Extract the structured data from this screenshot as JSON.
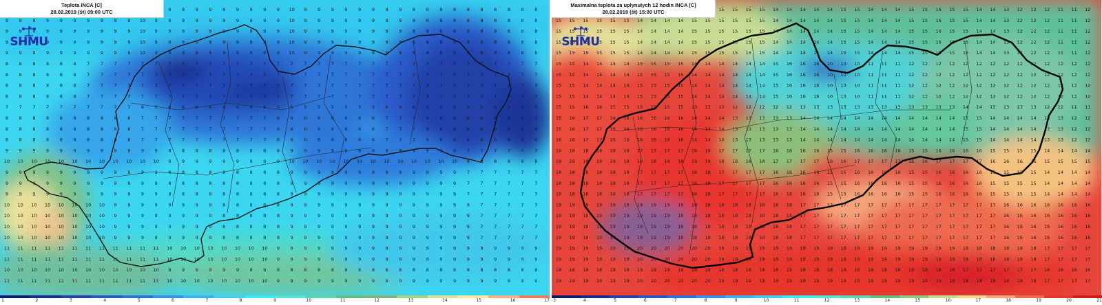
{
  "left_panel": {
    "title": "Teplota INCA [C]",
    "subtitle": "28.02.2019 (št) 09:00 UTC",
    "logo_text": "SHMU",
    "legend": {
      "labels": [
        "1",
        "2",
        "3",
        "4",
        "5",
        "6",
        "7",
        "8",
        "9",
        "10",
        "11",
        "12",
        "13",
        "14",
        "15",
        "16",
        "17"
      ],
      "colors": [
        "#0e1a6e",
        "#1a2a8c",
        "#2340a8",
        "#2b55c4",
        "#3170d6",
        "#3a8ee6",
        "#3fb1ee",
        "#3fcff2",
        "#3fe6f0",
        "#52e6d2",
        "#5cd3ae",
        "#67bb85",
        "#7bb677",
        "#a6cf86",
        "#d4e49a",
        "#f7e7a0",
        "#f6b184",
        "#f07c5c"
      ]
    },
    "grid_values": [
      [
        9,
        9,
        9,
        9,
        9,
        9,
        9,
        9,
        9,
        9,
        10,
        9,
        9,
        9,
        9,
        9,
        9,
        9,
        9,
        9,
        9,
        10,
        9,
        9,
        9,
        9,
        9,
        9,
        9,
        9,
        8,
        8,
        8,
        8,
        8,
        8,
        8,
        8,
        8,
        8
      ],
      [
        8,
        8,
        8,
        8,
        8,
        8,
        7,
        7,
        7,
        7,
        7,
        7,
        7,
        7,
        7,
        7,
        7,
        7,
        7,
        7,
        7,
        7,
        7,
        7,
        7,
        7,
        7,
        7,
        7,
        7,
        7,
        7,
        7,
        7,
        7,
        7,
        7,
        7,
        7,
        7
      ],
      [
        8,
        8,
        8,
        8,
        8,
        8,
        8,
        8,
        8,
        8,
        7,
        7,
        7,
        7,
        7,
        7,
        7,
        7,
        7,
        7,
        6,
        6,
        6,
        6,
        6,
        6,
        6,
        6,
        7,
        7,
        7,
        6,
        6,
        6,
        6,
        6,
        6,
        6,
        6,
        6
      ],
      [
        9,
        9,
        9,
        9,
        9,
        9,
        9,
        9,
        9,
        9,
        9,
        9,
        8,
        8,
        8,
        8,
        8,
        8,
        8,
        8,
        8,
        9,
        9,
        9,
        9,
        9,
        9,
        9,
        9,
        9,
        9,
        9,
        9,
        9,
        7,
        7,
        7,
        7,
        7,
        7
      ],
      [
        10,
        10,
        10,
        10,
        10,
        10,
        10,
        10,
        9,
        9,
        9,
        9,
        9,
        9,
        9,
        9,
        8,
        8,
        8,
        8,
        8,
        9,
        9,
        9,
        9,
        9,
        9,
        9,
        9,
        9,
        9,
        9,
        9,
        9,
        9,
        7,
        7,
        7,
        7,
        7
      ],
      [
        11,
        11,
        11,
        11,
        11,
        11,
        11,
        11,
        11,
        11,
        11,
        11,
        10,
        10,
        10,
        10,
        10,
        10,
        10,
        10,
        9,
        9,
        9,
        9,
        9,
        9,
        9,
        9,
        9,
        9,
        9,
        9,
        9,
        9,
        9,
        9,
        9,
        9,
        9,
        9
      ]
    ]
  },
  "right_panel": {
    "title": "Maximalna teplota za uplynulych 12 hodin INCA [C]",
    "subtitle": "28.02.2019 (št) 15:00 UTC",
    "logo_text": "SHMU",
    "legend": {
      "labels": [
        "3",
        "4",
        "5",
        "6",
        "7",
        "8",
        "9",
        "10",
        "11",
        "12",
        "13",
        "14",
        "15",
        "16",
        "17",
        "18",
        "19",
        "20",
        "21"
      ],
      "colors": [
        "#0e1a6e",
        "#1a2a8c",
        "#2340a8",
        "#2b55c4",
        "#3170d6",
        "#3a8ee6",
        "#3fb1ee",
        "#3fcff2",
        "#3fe6f0",
        "#52e6d2",
        "#5cd3ae",
        "#67bb85",
        "#8ec47f",
        "#c4dc90",
        "#f6d88c",
        "#f6a579",
        "#ef6a4f",
        "#e8352f",
        "#d21b1f"
      ]
    },
    "grid_values": [
      [
        15,
        15,
        15,
        15,
        15,
        15,
        14,
        14,
        14,
        14,
        15,
        15,
        15,
        15,
        15,
        15,
        14,
        14,
        14,
        14,
        14,
        15,
        15,
        14,
        14,
        14,
        15,
        15,
        16,
        15,
        15,
        14,
        14,
        13,
        12,
        12,
        12,
        11,
        11,
        12
      ],
      [
        15,
        15,
        14,
        14,
        14,
        14,
        15,
        15,
        15,
        15,
        14,
        14,
        14,
        14,
        14,
        14,
        15,
        16,
        16,
        16,
        10,
        10,
        10,
        11,
        11,
        11,
        12,
        12,
        12,
        12,
        12,
        12,
        12,
        12,
        12,
        12,
        12,
        12,
        12,
        12
      ],
      [
        16,
        16,
        17,
        17,
        16,
        16,
        16,
        16,
        16,
        16,
        14,
        14,
        14,
        13,
        13,
        13,
        13,
        13,
        14,
        14,
        14,
        14,
        14,
        14,
        14,
        14,
        14,
        14,
        14,
        14,
        15,
        15,
        14,
        14,
        14,
        14,
        13,
        13,
        12,
        12
      ],
      [
        18,
        18,
        18,
        18,
        18,
        18,
        17,
        17,
        17,
        17,
        18,
        18,
        17,
        17,
        17,
        17,
        16,
        16,
        16,
        16,
        15,
        15,
        16,
        16,
        16,
        16,
        15,
        15,
        16,
        16,
        16,
        16,
        15,
        15,
        15,
        15,
        14,
        14,
        14,
        14
      ],
      [
        19,
        19,
        19,
        19,
        19,
        19,
        19,
        19,
        19,
        19,
        18,
        18,
        18,
        18,
        18,
        18,
        18,
        18,
        17,
        17,
        17,
        17,
        17,
        17,
        17,
        17,
        17,
        17,
        17,
        17,
        17,
        17,
        17,
        16,
        16,
        16,
        16,
        16,
        16,
        16
      ],
      [
        19,
        19,
        19,
        19,
        19,
        19,
        20,
        20,
        20,
        20,
        20,
        20,
        19,
        19,
        19,
        19,
        19,
        19,
        19,
        19,
        19,
        19,
        19,
        19,
        19,
        19,
        19,
        19,
        19,
        19,
        18,
        18,
        18,
        18,
        18,
        18,
        17,
        17,
        17,
        17
      ]
    ]
  }
}
